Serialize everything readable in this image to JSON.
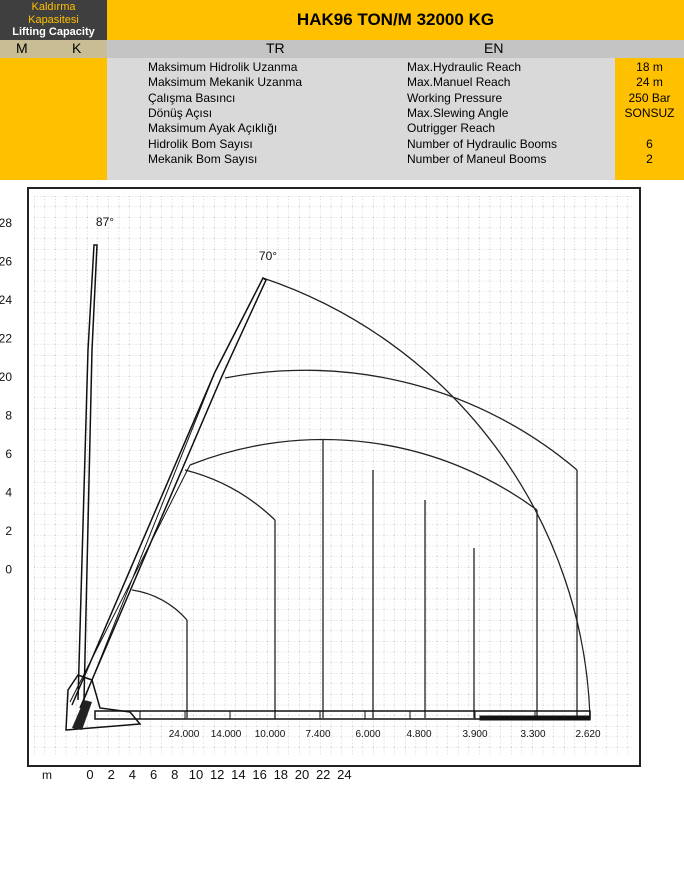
{
  "header": {
    "left_title": [
      "Kaldırma",
      "Kapasitesi"
    ],
    "left_subtitle": "Lifting Capacity",
    "title": "HAK96 TON/M 32000 KG"
  },
  "table": {
    "left_columns": [
      "M",
      "K"
    ],
    "columns": [
      "TR",
      "EN"
    ],
    "rows": [
      [
        "Maksimum Hidrolik Uzanma",
        "Max.Hydraulic Reach",
        "18 m"
      ],
      [
        "Maksimum Mekanik Uzanma",
        "Max.Manuel Reach",
        "24 m"
      ],
      [
        "Çalışma Basıncı",
        "Working Pressure",
        "250 Bar"
      ],
      [
        "Dönüş Açısı",
        "Max.Slewing Angle",
        "SONSUZ"
      ],
      [
        "Maksimum Ayak Açıklığı",
        "Outrigger Reach"
      ],
      [
        "Hidrolik Bom Sayısı",
        "Number of Hydraulic Booms",
        "6"
      ],
      [
        "Mekanik Bom Sayısı",
        "Number of Maneul Booms",
        "2"
      ]
    ]
  },
  "diagram": {
    "angles": [
      "87°",
      "70°"
    ],
    "y_labels": [
      28,
      26,
      24,
      22,
      20,
      8,
      6,
      4,
      2,
      0
    ],
    "x_unit": "m",
    "x_labels": [
      0,
      2,
      4,
      6,
      8,
      10,
      12,
      14,
      16,
      18,
      20,
      22,
      24
    ],
    "loads": [
      "24.000",
      "14.000",
      "10.000",
      "7.400",
      "6.000",
      "4.800",
      "3.900",
      "3.300",
      "2.620"
    ]
  }
}
